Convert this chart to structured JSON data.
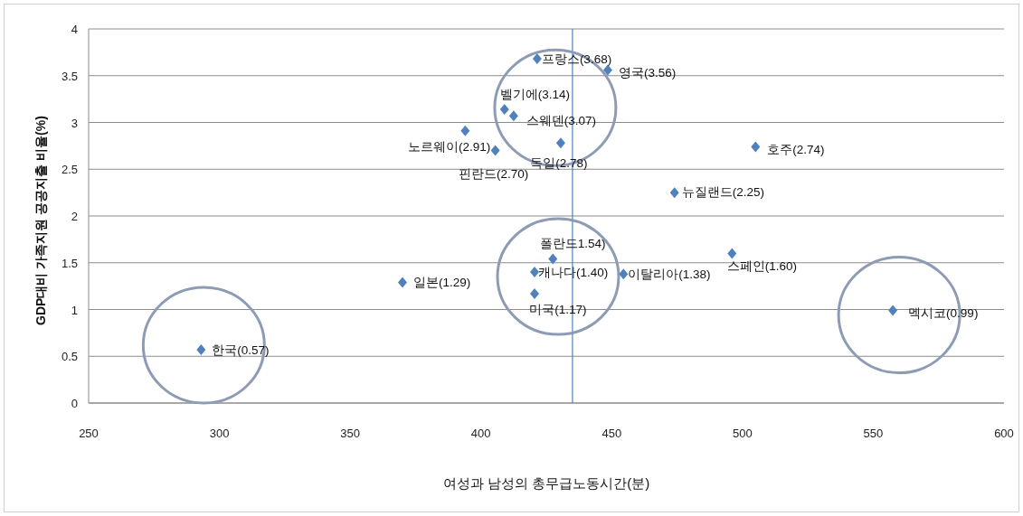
{
  "chart_data": {
    "type": "scatter",
    "xlabel": "여성과 남성의 총무급노동시간(분)",
    "ylabel": "GDP대비 가족지원 공공지출 비율(%)",
    "x": [
      293,
      370,
      394,
      405.5,
      409,
      412.5,
      421.5,
      430.5,
      448.5,
      420.5,
      420.5,
      427.5,
      454.5,
      474,
      496,
      505,
      557.5
    ],
    "values": [
      0.57,
      1.29,
      2.91,
      2.7,
      3.14,
      3.07,
      3.68,
      2.78,
      3.56,
      1.4,
      1.17,
      1.54,
      1.38,
      2.25,
      1.6,
      2.74,
      0.99
    ],
    "color": "#4f81bd",
    "marker": "diamond",
    "grid": "y",
    "xlim": [
      250,
      600
    ],
    "ylim": [
      0,
      4
    ],
    "xticks": [
      250,
      300,
      350,
      400,
      450,
      500,
      550,
      600
    ],
    "yticks": [
      0,
      0.5,
      1,
      1.5,
      2,
      2.5,
      3,
      3.5,
      4
    ],
    "ref_lines": [
      {
        "axis": "x",
        "value": 435,
        "color": "#4f81bd"
      }
    ],
    "annotations": [
      {
        "text": "한국(0.57)",
        "x": 293,
        "y": 0.57
      },
      {
        "text": "일본(1.29)",
        "x": 370,
        "y": 1.29
      },
      {
        "text": "노르웨이(2.91)",
        "x": 394,
        "y": 2.91
      },
      {
        "text": "핀란드(2.70)",
        "x": 405.5,
        "y": 2.7
      },
      {
        "text": "벨기에(3.14)",
        "x": 409,
        "y": 3.14
      },
      {
        "text": "스웨덴(3.07)",
        "x": 412.5,
        "y": 3.07
      },
      {
        "text": "프랑스(3.68)",
        "x": 421.5,
        "y": 3.68
      },
      {
        "text": "독일(2.78)",
        "x": 430.5,
        "y": 2.78
      },
      {
        "text": "영국(3.56)",
        "x": 448.5,
        "y": 3.56
      },
      {
        "text": "캐나다(1.40)",
        "x": 420.5,
        "y": 1.4
      },
      {
        "text": "미국(1.17)",
        "x": 420.5,
        "y": 1.17
      },
      {
        "text": "폴란드1.54)",
        "x": 427.5,
        "y": 1.54
      },
      {
        "text": "이탈리아(1.38)",
        "x": 454.5,
        "y": 1.38
      },
      {
        "text": "뉴질랜드(2.25)",
        "x": 474,
        "y": 2.25
      },
      {
        "text": "스페인(1.60)",
        "x": 496,
        "y": 1.6
      },
      {
        "text": "호주(2.74)",
        "x": 505,
        "y": 2.74
      },
      {
        "text": "멕시코(0.99)",
        "x": 557.5,
        "y": 0.99
      }
    ]
  }
}
